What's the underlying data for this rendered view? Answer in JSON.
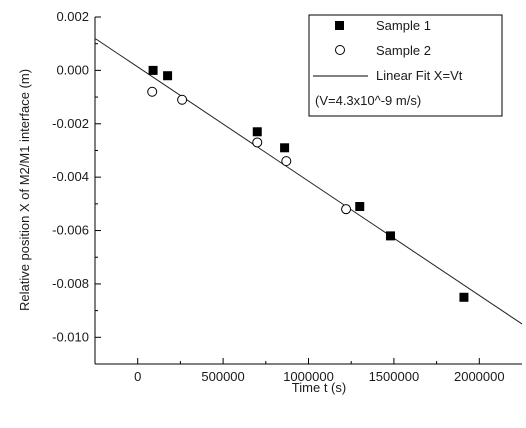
{
  "chart_data": {
    "type": "scatter",
    "xlabel": "Time t (s)",
    "ylabel": "Relative position X of M2/M1 interface (m)",
    "xlim": [
      -250000,
      2250000
    ],
    "ylim": [
      -0.011,
      0.002
    ],
    "x_ticks": [
      0,
      500000,
      1000000,
      1500000,
      2000000
    ],
    "x_tick_labels": [
      "0",
      "500000",
      "1000000",
      "1500000",
      "2000000"
    ],
    "y_ticks": [
      0.002,
      0.0,
      -0.002,
      -0.004,
      -0.006,
      -0.008,
      -0.01
    ],
    "y_tick_labels": [
      "0.002",
      "0.000",
      "-0.002",
      "-0.004",
      "-0.006",
      "-0.008",
      "-0.010"
    ],
    "grid": false,
    "legend_position": "top-right",
    "series": [
      {
        "name": "Sample 1",
        "marker": "filled-square",
        "color": "#000000",
        "x": [
          90000,
          175000,
          700000,
          860000,
          1300000,
          1480000,
          1910000
        ],
        "y": [
          0.0,
          -0.0002,
          -0.0023,
          -0.0029,
          -0.0051,
          -0.0062,
          -0.0085
        ]
      },
      {
        "name": "Sample 2",
        "marker": "open-circle",
        "color": "#000000",
        "x": [
          85000,
          260000,
          700000,
          870000,
          1220000
        ],
        "y": [
          -0.0008,
          -0.0011,
          -0.0027,
          -0.0034,
          -0.0052
        ]
      }
    ],
    "fit": {
      "name": "Linear Fit X=Vt",
      "annotation": "(V=4.3x10^-9 m/s)",
      "x": [
        -250000,
        2250000
      ],
      "y": [
        0.0012,
        -0.0095
      ]
    }
  }
}
